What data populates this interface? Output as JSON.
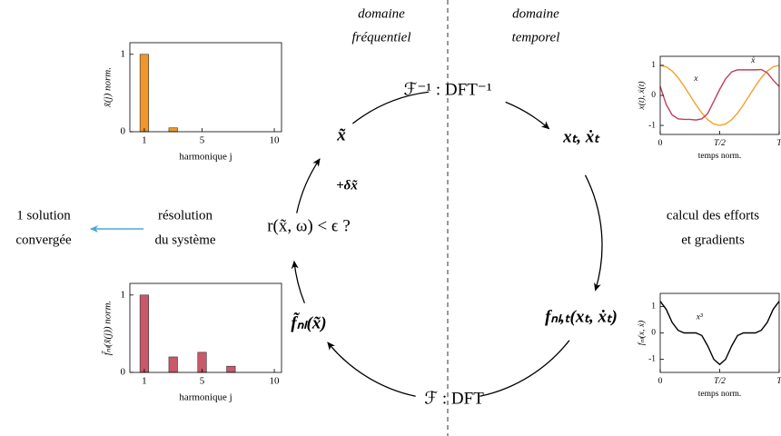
{
  "headings": [
    [
      "domaine",
      "fréquentiel"
    ],
    [
      "domaine",
      "temporel"
    ]
  ],
  "nodes": {
    "inverse_dft": "ℱ⁻¹ : DFT⁻¹",
    "time_states": "xₜ, ẋₜ",
    "time_forces": "fₙₗ,ₜ(xₜ, ẋₜ)",
    "dft": "ℱ : DFT",
    "freq_forces": "f̃ₙₗ(x̃)",
    "residual": "r(x̃, ω) < ϵ ?",
    "freq_states": "x̃",
    "update": "+δx̃"
  },
  "left": {
    "solve": [
      "résolution",
      "du système"
    ],
    "output": [
      "1 solution",
      "convergée"
    ]
  },
  "right": {
    "compute": [
      "calcul des efforts",
      "et gradients"
    ]
  },
  "chart_data": [
    {
      "type": "bar",
      "ylabel": "x̃(j) norm.",
      "xlabel": "harmonique j",
      "color": "#f0962a",
      "x": [
        1,
        3
      ],
      "values": [
        1,
        0.05
      ],
      "xlim": [
        0,
        10.5
      ],
      "xticks": [
        1,
        5,
        10
      ],
      "ylim": [
        0,
        1.15
      ],
      "yticks": [
        0,
        1
      ]
    },
    {
      "type": "bar",
      "ylabel": "f̃ₙₗ(x̃(j)) norm.",
      "xlabel": "harmonique j",
      "color": "#c8586a",
      "x": [
        1,
        3,
        5,
        7
      ],
      "values": [
        1,
        0.2,
        0.26,
        0.08
      ],
      "xlim": [
        0,
        10.5
      ],
      "xticks": [
        1,
        5,
        10
      ],
      "ylim": [
        0,
        1.15
      ],
      "yticks": [
        0,
        1
      ]
    },
    {
      "type": "line",
      "ylabel": "x(t), ẋ(t)",
      "xlabel": "temps norm.",
      "x": [
        0,
        0.05,
        0.1,
        0.15,
        0.2,
        0.25,
        0.3,
        0.35,
        0.4,
        0.45,
        0.5,
        0.55,
        0.6,
        0.65,
        0.7,
        0.75,
        0.8,
        0.85,
        0.9,
        0.95,
        1
      ],
      "series": [
        {
          "name": "x",
          "color": "#f5a030",
          "values": [
            1,
            0.95,
            0.81,
            0.59,
            0.31,
            0,
            -0.31,
            -0.59,
            -0.81,
            -0.95,
            -1,
            -0.95,
            -0.81,
            -0.59,
            -0.31,
            0,
            0.31,
            0.59,
            0.81,
            0.95,
            1
          ]
        },
        {
          "name": "ẋ",
          "color": "#c0405a",
          "values": [
            0.3,
            -0.3,
            -0.65,
            -0.78,
            -0.8,
            -0.8,
            -0.82,
            -0.78,
            -0.6,
            -0.2,
            0.2,
            0.55,
            0.78,
            0.85,
            0.85,
            0.85,
            0.85,
            0.86,
            0.75,
            0.5,
            0.3
          ]
        }
      ],
      "xlim": [
        0,
        1
      ],
      "xticks": [
        0,
        {
          "value": 0.5,
          "label": "T/2"
        },
        {
          "value": 1,
          "label": "T"
        }
      ],
      "ylim": [
        -1.3,
        1.3
      ],
      "yticks": [
        -1,
        0,
        1
      ]
    },
    {
      "type": "line",
      "ylabel": "fₙₗ(x, ẋ)",
      "xlabel": "temps norm.",
      "x": [
        0,
        0.05,
        0.1,
        0.15,
        0.2,
        0.25,
        0.3,
        0.35,
        0.4,
        0.45,
        0.5,
        0.55,
        0.6,
        0.65,
        0.7,
        0.75,
        0.8,
        0.85,
        0.9,
        0.95,
        1
      ],
      "series": [
        {
          "name": "x³",
          "color": "#000000",
          "values": [
            1.2,
            0.9,
            0.4,
            0.1,
            0,
            0,
            0,
            -0.1,
            -0.5,
            -1,
            -1.2,
            -1,
            -0.5,
            -0.1,
            0,
            0,
            0,
            0.1,
            0.4,
            0.9,
            1.2
          ]
        }
      ],
      "xlim": [
        0,
        1
      ],
      "xticks": [
        0,
        {
          "value": 0.5,
          "label": "T/2"
        },
        {
          "value": 1,
          "label": "T"
        }
      ],
      "ylim": [
        -1.5,
        1.5
      ],
      "yticks": [
        -1,
        0,
        1
      ]
    }
  ]
}
